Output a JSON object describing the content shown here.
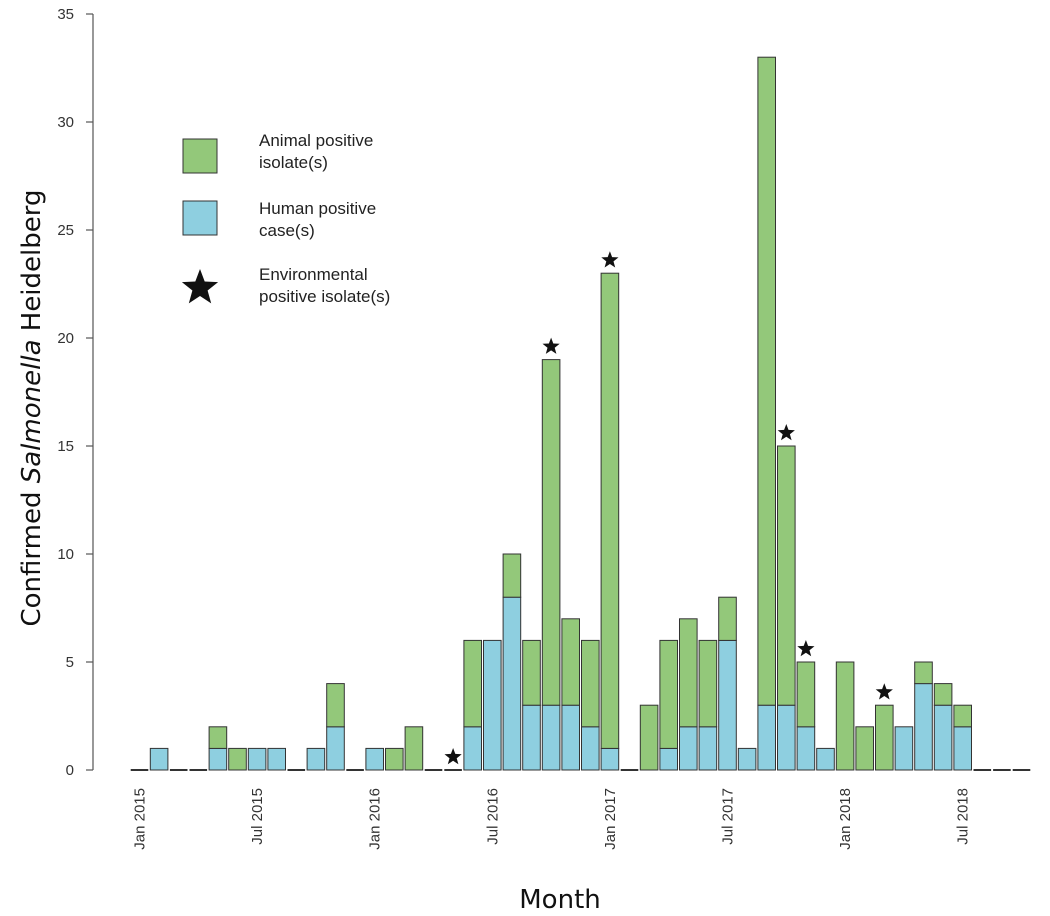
{
  "chart_data": {
    "type": "bar",
    "stacked": true,
    "title": "",
    "xlabel": "Month",
    "ylabel_parts": [
      "Confirmed ",
      "Salmonella",
      " Heidelberg"
    ],
    "ylim": [
      0,
      35
    ],
    "y_ticks": [
      0,
      5,
      10,
      15,
      20,
      25,
      30,
      35
    ],
    "x_tick_labels": [
      "Jan 2015",
      "Jul 2015",
      "Jan 2016",
      "Jul 2016",
      "Jan 2017",
      "Jul 2017",
      "Jan 2018",
      "Jul 2018"
    ],
    "x_tick_month_index": [
      0,
      6,
      12,
      18,
      24,
      30,
      36,
      42
    ],
    "months_count": 46,
    "legend": {
      "placement": "top-left",
      "animal": [
        "Animal positive",
        "isolate(s)"
      ],
      "human": [
        "Human positive",
        "case(s)"
      ],
      "environmental": [
        "Environmental",
        "positive isolate(s)"
      ]
    },
    "colors": {
      "animal": "#93c87a",
      "human": "#8ecfe0",
      "outline": "#333333",
      "star": "#111111"
    },
    "series": [
      {
        "name": "Human positive case(s)",
        "values": [
          0,
          1,
          0,
          0,
          1,
          0,
          1,
          1,
          0,
          1,
          2,
          0,
          1,
          0,
          0,
          0,
          0,
          2,
          6,
          8,
          3,
          3,
          3,
          2,
          1,
          0,
          0,
          1,
          2,
          2,
          6,
          1,
          3,
          3,
          2,
          1,
          0,
          0,
          0,
          2,
          4,
          3,
          2,
          0,
          0,
          0
        ]
      },
      {
        "name": "Animal positive isolate(s)",
        "values": [
          0,
          0,
          0,
          0,
          1,
          1,
          0,
          0,
          0,
          0,
          2,
          0,
          0,
          1,
          2,
          0,
          0,
          4,
          0,
          2,
          3,
          16,
          4,
          4,
          22,
          0,
          3,
          5,
          5,
          4,
          2,
          0,
          30,
          12,
          3,
          0,
          5,
          2,
          3,
          0,
          1,
          1,
          1,
          0,
          0,
          0
        ]
      }
    ],
    "environmental_positive_month_index": [
      16,
      21,
      24,
      33,
      34,
      38
    ]
  }
}
